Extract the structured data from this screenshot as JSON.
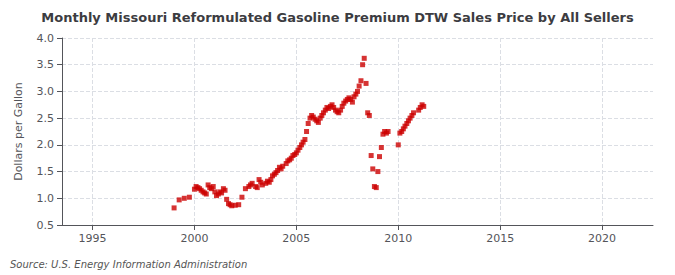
{
  "chart_data": {
    "type": "scatter",
    "title": "Monthly Missouri Reformulated Gasoline Premium DTW Sales Price by All Sellers",
    "ylabel": "Dollars per Gallon",
    "annotations": [
      "Source: U.S. Energy Information Administration"
    ],
    "color": "#CC0000",
    "marker": "square",
    "grid": true,
    "xlim": [
      1993.5,
      2022.5
    ],
    "ylim": [
      0.5,
      4.0
    ],
    "xticks": [
      1995,
      2000,
      2005,
      2010,
      2015,
      2020
    ],
    "yticks": [
      {
        "value": 0.5,
        "label": "0.5"
      },
      {
        "value": 1.0,
        "label": "1.0"
      },
      {
        "value": 1.5,
        "label": "1.5"
      },
      {
        "value": 2.0,
        "label": "2.0"
      },
      {
        "value": 2.5,
        "label": "2.5"
      },
      {
        "value": 3.0,
        "label": "3.0"
      },
      {
        "value": 3.5,
        "label": "3.5"
      },
      {
        "value": 4.0,
        "label": "4.0"
      }
    ],
    "x": [
      1999.0,
      1999.25,
      1999.5,
      1999.75,
      2000.0,
      2000.08,
      2000.17,
      2000.25,
      2000.33,
      2000.42,
      2000.5,
      2000.58,
      2000.67,
      2000.75,
      2000.83,
      2000.92,
      2001.0,
      2001.08,
      2001.17,
      2001.25,
      2001.33,
      2001.42,
      2001.5,
      2001.58,
      2001.67,
      2001.75,
      2001.83,
      2002.0,
      2002.17,
      2002.33,
      2002.5,
      2002.67,
      2002.75,
      2002.83,
      2003.0,
      2003.08,
      2003.17,
      2003.25,
      2003.33,
      2003.5,
      2003.58,
      2003.67,
      2003.75,
      2003.83,
      2003.92,
      2004.0,
      2004.08,
      2004.17,
      2004.25,
      2004.33,
      2004.5,
      2004.58,
      2004.67,
      2004.75,
      2004.83,
      2004.92,
      2005.0,
      2005.08,
      2005.17,
      2005.25,
      2005.33,
      2005.42,
      2005.5,
      2005.58,
      2005.67,
      2005.75,
      2005.83,
      2005.92,
      2006.0,
      2006.08,
      2006.17,
      2006.25,
      2006.33,
      2006.42,
      2006.5,
      2006.58,
      2006.67,
      2006.75,
      2006.83,
      2006.92,
      2007.0,
      2007.08,
      2007.17,
      2007.25,
      2007.33,
      2007.42,
      2007.5,
      2007.58,
      2007.67,
      2007.75,
      2007.83,
      2007.92,
      2008.0,
      2008.08,
      2008.17,
      2008.25,
      2008.33,
      2008.42,
      2008.5,
      2008.58,
      2008.67,
      2008.75,
      2008.83,
      2008.92,
      2009.0,
      2009.08,
      2009.17,
      2009.25,
      2009.33,
      2009.42,
      2009.5,
      2010.0,
      2010.08,
      2010.17,
      2010.25,
      2010.33,
      2010.42,
      2010.5,
      2010.58,
      2010.67,
      2010.75,
      2011.0,
      2011.08,
      2011.17,
      2011.25
    ],
    "values": [
      0.82,
      0.97,
      1.0,
      1.02,
      1.17,
      1.22,
      1.2,
      1.18,
      1.15,
      1.12,
      1.1,
      1.08,
      1.25,
      1.2,
      1.18,
      1.22,
      1.12,
      1.05,
      1.08,
      1.12,
      1.1,
      1.18,
      1.15,
      0.98,
      0.9,
      0.88,
      0.86,
      0.87,
      0.88,
      1.02,
      1.18,
      1.22,
      1.25,
      1.28,
      1.22,
      1.2,
      1.35,
      1.3,
      1.25,
      1.28,
      1.32,
      1.3,
      1.35,
      1.42,
      1.45,
      1.48,
      1.52,
      1.58,
      1.55,
      1.6,
      1.65,
      1.7,
      1.72,
      1.75,
      1.8,
      1.82,
      1.85,
      1.9,
      1.95,
      2.0,
      2.05,
      2.1,
      2.25,
      2.4,
      2.5,
      2.55,
      2.52,
      2.48,
      2.45,
      2.42,
      2.5,
      2.55,
      2.6,
      2.65,
      2.7,
      2.68,
      2.72,
      2.75,
      2.7,
      2.65,
      2.62,
      2.6,
      2.65,
      2.72,
      2.78,
      2.82,
      2.85,
      2.88,
      2.85,
      2.8,
      2.9,
      2.95,
      3.0,
      3.1,
      3.2,
      3.5,
      3.62,
      3.15,
      2.6,
      2.55,
      1.8,
      1.55,
      1.22,
      1.2,
      1.5,
      1.78,
      1.95,
      2.2,
      2.25,
      2.22,
      2.25,
      2.0,
      2.22,
      2.25,
      2.3,
      2.35,
      2.4,
      2.45,
      2.5,
      2.55,
      2.6,
      2.65,
      2.7,
      2.75,
      2.72
    ]
  }
}
